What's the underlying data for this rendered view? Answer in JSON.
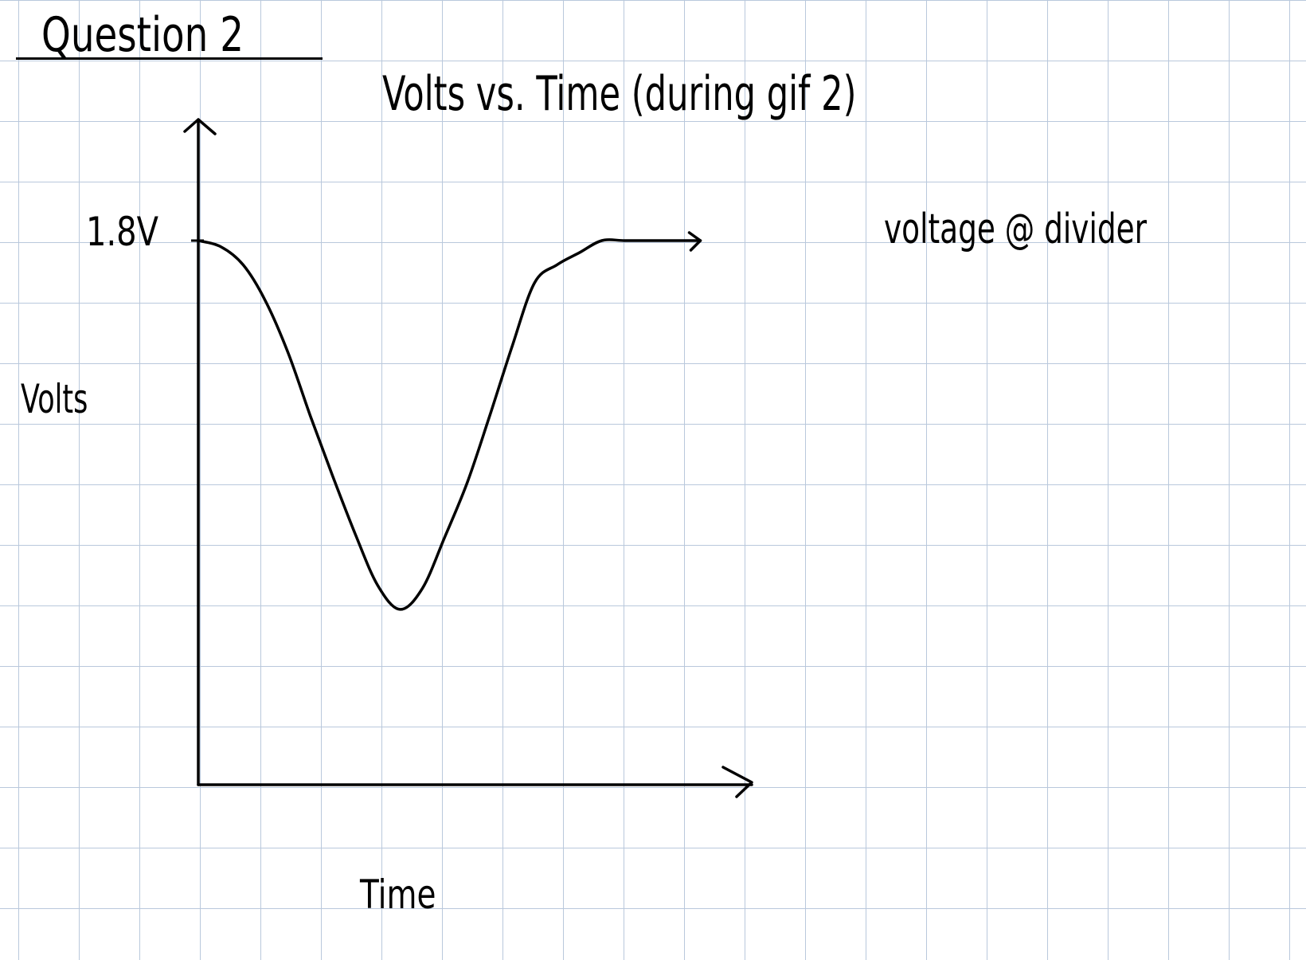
{
  "page": {
    "question_label": "Question 2"
  },
  "chart_data": {
    "type": "line",
    "title": "Volts vs. Time (during gif 2)",
    "xlabel": "Time",
    "ylabel": "Volts",
    "y_tick_labels": [
      {
        "value": 1.8,
        "label": "1.8V"
      }
    ],
    "ylim": [
      0,
      2.52
    ],
    "xlim": [
      0,
      10
    ],
    "grid": true,
    "series": [
      {
        "name": "voltage @ divider",
        "x": [
          0,
          0.5,
          1.0,
          1.5,
          2.0,
          2.5,
          3.0,
          3.5,
          4.0,
          4.5,
          5.0,
          5.5,
          6.0,
          6.5,
          7.0,
          7.5,
          8.0,
          8.5,
          9.0,
          9.5,
          10.0,
          11.2
        ],
        "y": [
          1.8,
          1.78,
          1.72,
          1.6,
          1.43,
          1.22,
          1.02,
          0.83,
          0.66,
          0.58,
          0.65,
          0.82,
          1.0,
          1.22,
          1.45,
          1.66,
          1.72,
          1.76,
          1.8,
          1.8,
          1.8,
          1.8
        ]
      }
    ]
  },
  "colors": {
    "ink": "#000000",
    "grid": "#b9c8dc",
    "paper": "#ffffff"
  }
}
